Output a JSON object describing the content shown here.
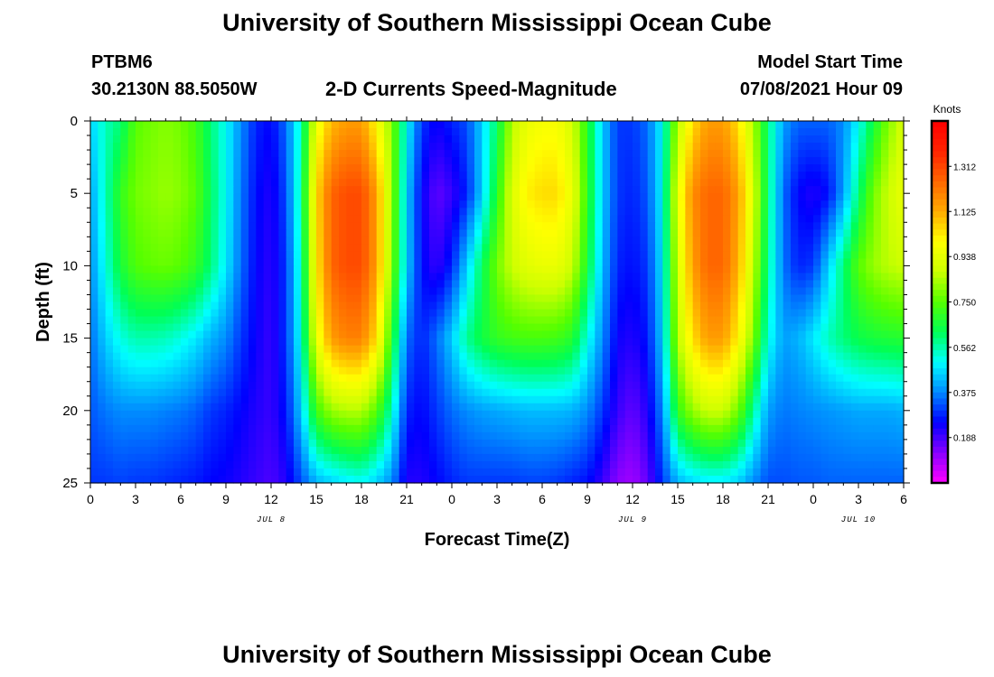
{
  "page": {
    "title_top": "University of Southern Mississippi Ocean Cube",
    "title_bottom": "University of Southern Mississippi Ocean Cube",
    "station_id": "PTBM6",
    "station_coords": "30.2130N  88.5050W",
    "plot_title": "2-D Currents Speed-Magnitude",
    "model_start_label": "Model Start Time",
    "model_start_value": "07/08/2021 Hour 09"
  },
  "chart_data": {
    "type": "heatmap",
    "title": "2-D Currents Speed-Magnitude",
    "xlabel": "Forecast Time(Z)",
    "ylabel": "Depth (ft)",
    "x_tick_labels": [
      "0",
      "3",
      "6",
      "9",
      "12",
      "15",
      "18",
      "21",
      "0",
      "3",
      "6",
      "9",
      "12",
      "15",
      "18",
      "21",
      "0",
      "3",
      "6"
    ],
    "x_range_hours": [
      0,
      54
    ],
    "date_labels": [
      {
        "label": "JUL 8",
        "hour": 12
      },
      {
        "label": "JUL 9",
        "hour": 36
      },
      {
        "label": "JUL 10",
        "hour": 51
      }
    ],
    "y_ticks": [
      0,
      5,
      10,
      15,
      20,
      25
    ],
    "ylim": [
      0,
      25
    ],
    "y_inverted": true,
    "colorbar": {
      "label": "Knots",
      "ticks": [
        "1.312",
        "1.125",
        "0.938",
        "0.750",
        "0.562",
        "0.375",
        "0.188"
      ],
      "tick_values": [
        1.312,
        1.125,
        0.938,
        0.75,
        0.562,
        0.375,
        0.188
      ],
      "range": [
        0.0,
        1.5
      ],
      "colors": [
        "#ff00ff",
        "#8800ff",
        "#0000ff",
        "#0088ff",
        "#00ffff",
        "#00ff55",
        "#55ff00",
        "#ccff00",
        "#ffff00",
        "#ffaa00",
        "#ff6600",
        "#ff2200",
        "#ff0000"
      ]
    },
    "speed_grid": {
      "x_hours": [
        0,
        1,
        2,
        3,
        4,
        5,
        6,
        7,
        8,
        9,
        10,
        11,
        12,
        13,
        14,
        15,
        16,
        17,
        18,
        19,
        20,
        21,
        22,
        23,
        24,
        25,
        26,
        27,
        28,
        29,
        30,
        31,
        32,
        33,
        34,
        35,
        36,
        37,
        38,
        39,
        40,
        41,
        42,
        43,
        44,
        45,
        46,
        47,
        48,
        49,
        50,
        51,
        52,
        53,
        54
      ],
      "depths_ft": [
        0,
        5,
        10,
        15,
        20,
        25
      ],
      "values": [
        [
          0.45,
          0.55,
          0.6,
          0.75,
          0.78,
          0.8,
          0.78,
          0.72,
          0.6,
          0.5,
          0.38,
          0.28,
          0.25,
          0.35,
          0.55,
          0.95,
          1.1,
          1.15,
          1.15,
          1.0,
          0.8,
          0.5,
          0.3,
          0.24,
          0.28,
          0.32,
          0.45,
          0.62,
          0.85,
          0.95,
          0.98,
          0.98,
          0.9,
          0.68,
          0.45,
          0.3,
          0.3,
          0.35,
          0.5,
          0.85,
          1.05,
          1.15,
          1.15,
          1.05,
          0.85,
          0.6,
          0.4,
          0.34,
          0.34,
          0.34,
          0.38,
          0.5,
          0.65,
          0.8,
          0.9
        ],
        [
          0.4,
          0.55,
          0.7,
          0.78,
          0.8,
          0.82,
          0.8,
          0.75,
          0.62,
          0.5,
          0.36,
          0.26,
          0.22,
          0.32,
          0.58,
          1.05,
          1.25,
          1.3,
          1.3,
          1.15,
          0.82,
          0.45,
          0.25,
          0.16,
          0.2,
          0.28,
          0.45,
          0.68,
          0.92,
          1.02,
          1.05,
          1.05,
          0.95,
          0.7,
          0.45,
          0.3,
          0.28,
          0.33,
          0.5,
          0.95,
          1.18,
          1.25,
          1.25,
          1.15,
          0.92,
          0.6,
          0.35,
          0.25,
          0.22,
          0.26,
          0.4,
          0.6,
          0.78,
          0.88,
          0.95
        ],
        [
          0.38,
          0.52,
          0.66,
          0.74,
          0.76,
          0.77,
          0.75,
          0.7,
          0.6,
          0.48,
          0.35,
          0.25,
          0.21,
          0.3,
          0.55,
          1.02,
          1.25,
          1.3,
          1.3,
          1.15,
          0.8,
          0.45,
          0.26,
          0.2,
          0.28,
          0.45,
          0.62,
          0.78,
          0.88,
          0.93,
          0.95,
          0.95,
          0.88,
          0.66,
          0.43,
          0.28,
          0.26,
          0.3,
          0.48,
          0.9,
          1.15,
          1.25,
          1.25,
          1.12,
          0.88,
          0.58,
          0.36,
          0.28,
          0.3,
          0.45,
          0.6,
          0.75,
          0.82,
          0.86,
          0.88
        ],
        [
          0.35,
          0.45,
          0.52,
          0.56,
          0.56,
          0.55,
          0.52,
          0.48,
          0.42,
          0.38,
          0.3,
          0.24,
          0.2,
          0.3,
          0.52,
          0.95,
          1.15,
          1.2,
          1.2,
          1.05,
          0.7,
          0.35,
          0.28,
          0.35,
          0.45,
          0.58,
          0.65,
          0.7,
          0.72,
          0.73,
          0.73,
          0.72,
          0.68,
          0.52,
          0.38,
          0.24,
          0.22,
          0.27,
          0.45,
          0.85,
          1.05,
          1.15,
          1.15,
          1.02,
          0.8,
          0.52,
          0.4,
          0.42,
          0.48,
          0.55,
          0.6,
          0.64,
          0.66,
          0.67,
          0.68
        ],
        [
          0.33,
          0.36,
          0.38,
          0.38,
          0.38,
          0.37,
          0.36,
          0.34,
          0.3,
          0.28,
          0.25,
          0.22,
          0.2,
          0.27,
          0.45,
          0.72,
          0.82,
          0.85,
          0.85,
          0.75,
          0.55,
          0.28,
          0.25,
          0.3,
          0.35,
          0.38,
          0.4,
          0.41,
          0.42,
          0.43,
          0.43,
          0.43,
          0.42,
          0.38,
          0.3,
          0.2,
          0.16,
          0.22,
          0.38,
          0.7,
          0.82,
          0.88,
          0.88,
          0.78,
          0.58,
          0.4,
          0.36,
          0.37,
          0.38,
          0.39,
          0.4,
          0.41,
          0.41,
          0.41,
          0.42
        ],
        [
          0.3,
          0.3,
          0.31,
          0.3,
          0.3,
          0.29,
          0.28,
          0.27,
          0.25,
          0.24,
          0.22,
          0.2,
          0.18,
          0.22,
          0.32,
          0.42,
          0.45,
          0.48,
          0.5,
          0.45,
          0.38,
          0.22,
          0.22,
          0.25,
          0.28,
          0.3,
          0.3,
          0.3,
          0.3,
          0.31,
          0.31,
          0.3,
          0.28,
          0.26,
          0.2,
          0.12,
          0.1,
          0.16,
          0.3,
          0.42,
          0.46,
          0.48,
          0.48,
          0.45,
          0.38,
          0.32,
          0.32,
          0.33,
          0.33,
          0.34,
          0.34,
          0.34,
          0.34,
          0.34,
          0.34
        ]
      ]
    }
  }
}
